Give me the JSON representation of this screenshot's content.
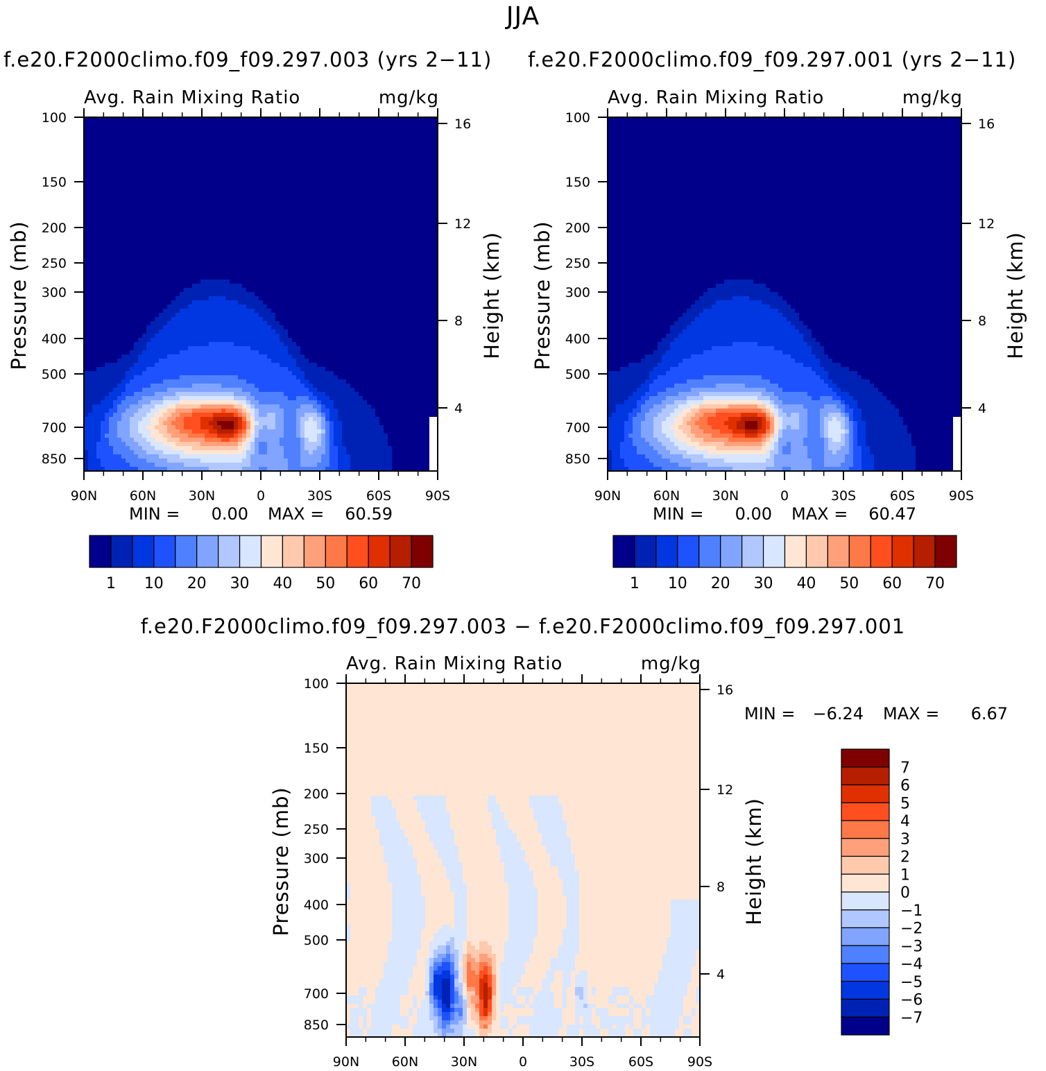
{
  "figure": {
    "title": "JJA",
    "units": "mg/kg",
    "variable": "Avg. Rain Mixing Ratio",
    "y_axis_label": "Pressure (mb)",
    "y2_axis_label": "Height (km)"
  },
  "panels": [
    {
      "case_title": "f.e20.F2000climo.f09_f09.297.003 (yrs 2−11)",
      "min_label": "MIN =",
      "min_value": "0.00",
      "max_label": "MAX =",
      "max_value": "60.59"
    },
    {
      "case_title": "f.e20.F2000climo.f09_f09.297.001 (yrs 2−11)",
      "min_label": "MIN =",
      "min_value": "0.00",
      "max_label": "MAX =",
      "max_value": "60.47"
    },
    {
      "case_title": "f.e20.F2000climo.f09_f09.297.003 − f.e20.F2000climo.f09_f09.297.001",
      "min_label": "MIN =",
      "min_value": "−6.24",
      "max_label": "MAX =",
      "max_value": "6.67"
    }
  ],
  "chart_data": [
    {
      "type": "heatmap",
      "title": "Avg. Rain Mixing Ratio",
      "units": "mg/kg",
      "xlabel": "",
      "ylabel": "Pressure (mb)",
      "y2label": "Height (km)",
      "x_ticks": [
        "90N",
        "60N",
        "30N",
        "0",
        "30S",
        "60S",
        "90S"
      ],
      "y_ticks": [
        "100",
        "150",
        "200",
        "250",
        "300",
        "400",
        "500",
        "700",
        "850"
      ],
      "y2_ticks": [
        "16",
        "12",
        "8",
        "4"
      ],
      "ylim": [
        100,
        1000
      ],
      "xlim": [
        90,
        -90
      ],
      "colorbar_labels": [
        "1",
        "10",
        "20",
        "30",
        "40",
        "50",
        "60",
        "70"
      ],
      "colors": [
        "#00008a",
        "#0022b4",
        "#0037e1",
        "#1f52ff",
        "#4f80ff",
        "#80a4ff",
        "#b0c7ff",
        "#d8e6ff",
        "#ffe6d4",
        "#ffc9ad",
        "#ffa07a",
        "#ff7848",
        "#ff4f1f",
        "#e03000",
        "#b51f00",
        "#7f0000"
      ],
      "min": 0.0,
      "max": 60.59,
      "features": [
        {
          "lat": 17,
          "pressure": 690,
          "value": 60
        },
        {
          "lat": 45,
          "pressure": 700,
          "value": 40
        },
        {
          "lat": -22,
          "pressure": 700,
          "value": 30
        }
      ]
    },
    {
      "type": "heatmap",
      "title": "Avg. Rain Mixing Ratio",
      "units": "mg/kg",
      "xlabel": "",
      "ylabel": "Pressure (mb)",
      "y2label": "Height (km)",
      "x_ticks": [
        "90N",
        "60N",
        "30N",
        "0",
        "30S",
        "60S",
        "90S"
      ],
      "y_ticks": [
        "100",
        "150",
        "200",
        "250",
        "300",
        "400",
        "500",
        "700",
        "850"
      ],
      "y2_ticks": [
        "16",
        "12",
        "8",
        "4"
      ],
      "ylim": [
        100,
        1000
      ],
      "xlim": [
        90,
        -90
      ],
      "colorbar_labels": [
        "1",
        "10",
        "20",
        "30",
        "40",
        "50",
        "60",
        "70"
      ],
      "colors": [
        "#00008a",
        "#0022b4",
        "#0037e1",
        "#1f52ff",
        "#4f80ff",
        "#80a4ff",
        "#b0c7ff",
        "#d8e6ff",
        "#ffe6d4",
        "#ffc9ad",
        "#ffa07a",
        "#ff7848",
        "#ff4f1f",
        "#e03000",
        "#b51f00",
        "#7f0000"
      ],
      "min": 0.0,
      "max": 60.47,
      "features": [
        {
          "lat": 15,
          "pressure": 690,
          "value": 60
        },
        {
          "lat": 40,
          "pressure": 700,
          "value": 40
        },
        {
          "lat": -25,
          "pressure": 700,
          "value": 30
        }
      ]
    },
    {
      "type": "heatmap",
      "title": "Avg. Rain Mixing Ratio",
      "units": "mg/kg",
      "xlabel": "",
      "ylabel": "Pressure (mb)",
      "y2label": "Height (km)",
      "x_ticks": [
        "90N",
        "60N",
        "30N",
        "0",
        "30S",
        "60S",
        "90S"
      ],
      "y_ticks": [
        "100",
        "150",
        "200",
        "250",
        "300",
        "400",
        "500",
        "700",
        "850"
      ],
      "y2_ticks": [
        "16",
        "12",
        "8",
        "4"
      ],
      "ylim": [
        100,
        1000
      ],
      "xlim": [
        90,
        -90
      ],
      "colorbar_labels": [
        "7",
        "6",
        "5",
        "4",
        "3",
        "2",
        "1",
        "0",
        "−1",
        "−2",
        "−3",
        "−4",
        "−5",
        "−6",
        "−7"
      ],
      "colors": [
        "#7f0000",
        "#b51f00",
        "#e03000",
        "#ff4f1f",
        "#ff7848",
        "#ffa07a",
        "#ffc9ad",
        "#ffe6d4",
        "#d8e6ff",
        "#b0c7ff",
        "#80a4ff",
        "#4f80ff",
        "#1f52ff",
        "#0037e1",
        "#0022b4",
        "#00008a"
      ],
      "min": -6.24,
      "max": 6.67,
      "features": [
        {
          "lat": 38,
          "pressure": 700,
          "value": -6
        },
        {
          "lat": 19,
          "pressure": 700,
          "value": 6
        }
      ]
    }
  ]
}
